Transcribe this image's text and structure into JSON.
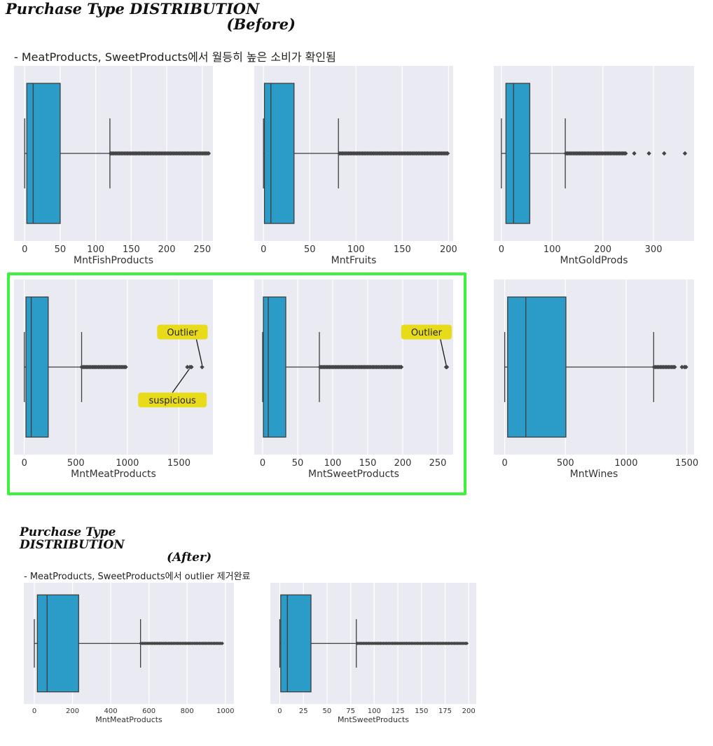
{
  "before": {
    "title_line1": "Purchase Type DISTRIBUTION",
    "title_line2": "(Before)",
    "subtitle": "- MeatProducts, SweetProducts에서 월등히 높은 소비가 확인됨"
  },
  "after": {
    "title_line1": "Purchase Type DISTRIBUTION",
    "title_line2": "(After)",
    "subtitle": "- MeatProducts, SweetProducts에서 outlier 제거완료"
  },
  "colors": {
    "panel_bg": "#eaeaf2",
    "box_fill": "#2b9cc8",
    "line": "#3d3d3d",
    "highlight": "#3cf23c",
    "annotation_bg": "#e8dc1a"
  },
  "chart_data": [
    {
      "type": "box",
      "xlabel": "MntFishProducts",
      "xlim": [
        -15,
        265
      ],
      "ticks": [
        0,
        50,
        100,
        150,
        200,
        250
      ],
      "box": {
        "min": 0,
        "q1": 3,
        "median": 12,
        "q3": 50,
        "max": 120
      },
      "outliers": [
        {
          "from": 121,
          "to": 259
        }
      ]
    },
    {
      "type": "box",
      "xlabel": "MntFruits",
      "xlim": [
        -10,
        205
      ],
      "ticks": [
        0,
        50,
        100,
        150,
        200
      ],
      "box": {
        "min": 0,
        "q1": 1,
        "median": 8,
        "q3": 33,
        "max": 81
      },
      "outliers": [
        {
          "from": 82,
          "to": 199
        }
      ]
    },
    {
      "type": "box",
      "xlabel": "MntGoldProds",
      "xlim": [
        -15,
        380
      ],
      "ticks": [
        0,
        100,
        200,
        300
      ],
      "box": {
        "min": 0,
        "q1": 9,
        "median": 24,
        "q3": 56,
        "max": 126
      },
      "outliers": [
        {
          "from": 127,
          "to": 245
        },
        {
          "value": 262
        },
        {
          "value": 291
        },
        {
          "value": 321
        },
        {
          "value": 362
        }
      ]
    },
    {
      "type": "box",
      "xlabel": "MntMeatProducts",
      "xlim": [
        -100,
        1830
      ],
      "ticks": [
        0,
        500,
        1000,
        1500
      ],
      "box": {
        "min": 0,
        "q1": 16,
        "median": 67,
        "q3": 232,
        "max": 556
      },
      "outliers": [
        {
          "from": 557,
          "to": 984
        },
        {
          "value": 1582
        },
        {
          "value": 1607
        },
        {
          "value": 1622
        },
        {
          "value": 1725
        }
      ],
      "annotations": [
        {
          "text": "Outlier",
          "target": 1725
        },
        {
          "text": "suspicious",
          "target": 1600
        }
      ]
    },
    {
      "type": "box",
      "xlabel": "MntSweetProducts",
      "xlim": [
        -12,
        272
      ],
      "ticks": [
        0,
        50,
        100,
        150,
        200,
        250
      ],
      "box": {
        "min": 0,
        "q1": 1,
        "median": 8,
        "q3": 33,
        "max": 81
      },
      "outliers": [
        {
          "from": 82,
          "to": 198
        },
        {
          "value": 262
        },
        {
          "value": 263
        }
      ],
      "annotations": [
        {
          "text": "Outlier",
          "target": 262
        }
      ]
    },
    {
      "type": "box",
      "xlabel": "MntWines",
      "xlim": [
        -90,
        1560
      ],
      "ticks": [
        0,
        500,
        1000,
        1500
      ],
      "box": {
        "min": 0,
        "q1": 24,
        "median": 174,
        "q3": 504,
        "max": 1227
      },
      "outliers": [
        {
          "from": 1230,
          "to": 1400
        },
        {
          "value": 1460
        },
        {
          "value": 1480
        },
        {
          "value": 1493
        }
      ]
    },
    {
      "type": "box",
      "xlabel": "MntMeatProducts",
      "xlim": [
        -55,
        1045
      ],
      "ticks": [
        0,
        200,
        400,
        600,
        800,
        1000
      ],
      "box": {
        "min": 0,
        "q1": 16,
        "median": 67,
        "q3": 232,
        "max": 556
      },
      "outliers": [
        {
          "from": 557,
          "to": 984
        }
      ]
    },
    {
      "type": "box",
      "xlabel": "MntSweetProducts",
      "xlim": [
        -10,
        208
      ],
      "ticks": [
        0,
        25,
        50,
        75,
        100,
        125,
        150,
        175,
        200
      ],
      "box": {
        "min": 0,
        "q1": 1,
        "median": 8,
        "q3": 33,
        "max": 81
      },
      "outliers": [
        {
          "from": 82,
          "to": 198
        }
      ]
    }
  ]
}
